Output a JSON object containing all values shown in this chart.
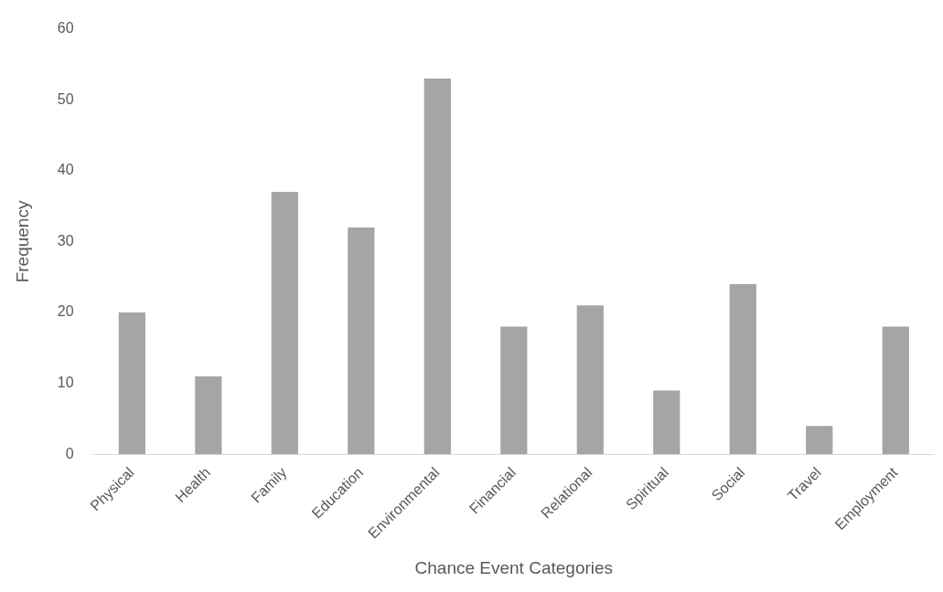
{
  "chart_data": {
    "type": "bar",
    "xlabel": "Chance Event Categories",
    "ylabel": "Frequency",
    "categories": [
      "Physical",
      "Health",
      "Family",
      "Education",
      "Environmental",
      "Financial",
      "Relational",
      "Spiritual",
      "Social",
      "Travel",
      "Employment"
    ],
    "values": [
      20,
      11,
      37,
      32,
      53,
      18,
      21,
      9,
      24,
      4,
      18
    ],
    "color": "#a5a5a5",
    "ylim": [
      0,
      60
    ],
    "yticks": [
      0,
      10,
      20,
      30,
      40,
      50,
      60
    ],
    "grid": false,
    "legend": false
  }
}
